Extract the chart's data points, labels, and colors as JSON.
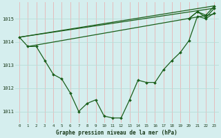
{
  "title": "Graphe pression niveau de la mer (hPa)",
  "bg_color": "#d5eeee",
  "grid_color_v": "#e8b4b4",
  "grid_color_h": "#b8ddd8",
  "line_color": "#1a5e1a",
  "xlim": [
    -0.5,
    23.5
  ],
  "ylim": [
    1010.5,
    1015.7
  ],
  "xticks": [
    0,
    1,
    2,
    3,
    4,
    5,
    6,
    7,
    8,
    9,
    10,
    11,
    12,
    13,
    14,
    15,
    16,
    17,
    18,
    19,
    20,
    21,
    22,
    23
  ],
  "yticks": [
    1011,
    1012,
    1013,
    1014,
    1015
  ],
  "main_series": [
    1014.2,
    1013.8,
    1013.8,
    1013.2,
    1012.6,
    1012.4,
    1011.8,
    1011.0,
    1011.35,
    1011.5,
    1010.8,
    1010.72,
    1010.72,
    1011.5,
    1012.35,
    1012.25,
    1012.25,
    1012.8,
    1013.2,
    1013.55,
    1014.05,
    1015.1,
    1015.0,
    1015.25
  ],
  "trend_lines": [
    {
      "x": [
        0,
        23
      ],
      "y": [
        1014.2,
        1015.45
      ]
    },
    {
      "x": [
        0,
        23
      ],
      "y": [
        1014.2,
        1015.55
      ]
    },
    {
      "x": [
        1,
        23
      ],
      "y": [
        1013.8,
        1015.2
      ]
    }
  ],
  "extra_series": [
    {
      "x": [
        20,
        21,
        22,
        23
      ],
      "y": [
        1015.0,
        1015.3,
        1015.05,
        1015.45
      ]
    },
    {
      "x": [
        20,
        21,
        22,
        23
      ],
      "y": [
        1015.0,
        1015.3,
        1015.15,
        1015.55
      ]
    }
  ]
}
